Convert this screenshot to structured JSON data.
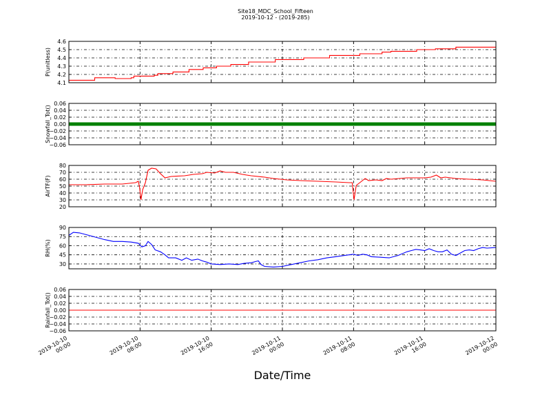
{
  "chart_data": {
    "type": "line",
    "title": "Site18_MDC_School_Fifteen",
    "subtitle": "2019-10-12 - (2019-285)",
    "xlabel": "Date/Time",
    "x_tick_labels": [
      [
        "2019-10-10",
        "00:00"
      ],
      [
        "2019-10-10",
        "08:00"
      ],
      [
        "2019-10-10",
        "16:00"
      ],
      [
        "2019-10-11",
        "00:00"
      ],
      [
        "2019-10-11",
        "08:00"
      ],
      [
        "2019-10-11",
        "16:00"
      ],
      [
        "2019-10-12",
        "00:00"
      ]
    ],
    "x_tick_hours": [
      0,
      8,
      16,
      24,
      32,
      40,
      48
    ],
    "xlim_hours": [
      0,
      48
    ],
    "grid": true,
    "panels": [
      {
        "ylabel": "P(unitless)",
        "ylim": [
          4.1,
          4.6
        ],
        "yticks": [
          "4.1",
          "4.2",
          "4.3",
          "4.4",
          "4.5",
          "4.6"
        ],
        "ytick_values": [
          4.1,
          4.2,
          4.3,
          4.4,
          4.5,
          4.6
        ],
        "series": [
          {
            "color": "#ff0000",
            "step": true,
            "points": [
              [
                0,
                4.13
              ],
              [
                2.7,
                4.13
              ],
              [
                2.9,
                4.16
              ],
              [
                5.0,
                4.16
              ],
              [
                5.2,
                4.15
              ],
              [
                7.0,
                4.16
              ],
              [
                7.3,
                4.18
              ],
              [
                9.2,
                4.18
              ],
              [
                9.6,
                4.19
              ],
              [
                10.0,
                4.21
              ],
              [
                11.5,
                4.21
              ],
              [
                11.7,
                4.23
              ],
              [
                13.2,
                4.23
              ],
              [
                13.5,
                4.26
              ],
              [
                14.8,
                4.26
              ],
              [
                15.1,
                4.28
              ],
              [
                16.3,
                4.28
              ],
              [
                16.6,
                4.3
              ],
              [
                18.0,
                4.3
              ],
              [
                18.2,
                4.32
              ],
              [
                20.0,
                4.32
              ],
              [
                20.2,
                4.35
              ],
              [
                23.0,
                4.35
              ],
              [
                23.2,
                4.38
              ],
              [
                26.0,
                4.38
              ],
              [
                26.4,
                4.4
              ],
              [
                29.0,
                4.4
              ],
              [
                29.3,
                4.43
              ],
              [
                32.5,
                4.43
              ],
              [
                32.7,
                4.45
              ],
              [
                35.0,
                4.45
              ],
              [
                35.2,
                4.47
              ],
              [
                36.0,
                4.47
              ],
              [
                36.2,
                4.48
              ],
              [
                38.9,
                4.48
              ],
              [
                39.1,
                4.5
              ],
              [
                41.0,
                4.5
              ],
              [
                41.2,
                4.51
              ],
              [
                43.3,
                4.51
              ],
              [
                43.5,
                4.53
              ],
              [
                46.0,
                4.53
              ],
              [
                46.3,
                4.53
              ],
              [
                48.0,
                4.53
              ]
            ]
          }
        ]
      },
      {
        "ylabel": "Snowfall_Tot()",
        "ylim": [
          -0.06,
          0.06
        ],
        "yticks": [
          "−0.06",
          "−0.04",
          "−0.02",
          "0.00",
          "0.02",
          "0.04",
          "0.06"
        ],
        "ytick_values": [
          -0.06,
          -0.04,
          -0.02,
          0.0,
          0.02,
          0.04,
          0.06
        ],
        "series": [
          {
            "color": "#008000",
            "markers": true,
            "points": [
              [
                0,
                0.0
              ],
              [
                48,
                0.0
              ]
            ]
          }
        ]
      },
      {
        "ylabel": "AirTF(F)",
        "ylim": [
          20,
          80
        ],
        "yticks": [
          "20",
          "30",
          "40",
          "50",
          "60",
          "70",
          "80"
        ],
        "ytick_values": [
          20,
          30,
          40,
          50,
          60,
          70,
          80
        ],
        "series": [
          {
            "color": "#ff0000",
            "points": [
              [
                0,
                52
              ],
              [
                2,
                52
              ],
              [
                4,
                53
              ],
              [
                6,
                53
              ],
              [
                7.5,
                55
              ],
              [
                7.8,
                57
              ],
              [
                7.95,
                48
              ],
              [
                8.1,
                30
              ],
              [
                8.3,
                45
              ],
              [
                8.6,
                55
              ],
              [
                8.9,
                73
              ],
              [
                9.3,
                76
              ],
              [
                9.8,
                75
              ],
              [
                10.3,
                68
              ],
              [
                10.8,
                62
              ],
              [
                11.5,
                64
              ],
              [
                13,
                65
              ],
              [
                14,
                67
              ],
              [
                15,
                68
              ],
              [
                15.5,
                70
              ],
              [
                16.4,
                69
              ],
              [
                17,
                72
              ],
              [
                17.6,
                70
              ],
              [
                18.5,
                70
              ],
              [
                19.5,
                67
              ],
              [
                20.5,
                65
              ],
              [
                22,
                63
              ],
              [
                23,
                61
              ],
              [
                24.5,
                59
              ],
              [
                26,
                58
              ],
              [
                28,
                57
              ],
              [
                30,
                56
              ],
              [
                31.5,
                55
              ],
              [
                31.85,
                55
              ],
              [
                32.05,
                30
              ],
              [
                32.3,
                51
              ],
              [
                32.8,
                56
              ],
              [
                33.3,
                61
              ],
              [
                33.7,
                58
              ],
              [
                34.5,
                59
              ],
              [
                35.2,
                58
              ],
              [
                35.7,
                61
              ],
              [
                36.2,
                60
              ],
              [
                38,
                62
              ],
              [
                40,
                62
              ],
              [
                40.7,
                63
              ],
              [
                41.3,
                66
              ],
              [
                41.8,
                62
              ],
              [
                42.3,
                63
              ],
              [
                43.5,
                61
              ],
              [
                45,
                60
              ],
              [
                46.5,
                59
              ],
              [
                48,
                57
              ]
            ]
          }
        ]
      },
      {
        "ylabel": "RH(%)",
        "ylim": [
          22,
          90
        ],
        "yticks": [
          "30",
          "45",
          "60",
          "75",
          "90"
        ],
        "ytick_values": [
          30,
          45,
          60,
          75,
          90
        ],
        "series": [
          {
            "color": "#0000ff",
            "points": [
              [
                0,
                77
              ],
              [
                0.5,
                82
              ],
              [
                1.2,
                81
              ],
              [
                2,
                78
              ],
              [
                3,
                74
              ],
              [
                4,
                70
              ],
              [
                5,
                67
              ],
              [
                6,
                67
              ],
              [
                7,
                66
              ],
              [
                7.8,
                64
              ],
              [
                8.2,
                58
              ],
              [
                8.6,
                60
              ],
              [
                8.9,
                67
              ],
              [
                9.3,
                62
              ],
              [
                9.7,
                53
              ],
              [
                10.3,
                50
              ],
              [
                10.8,
                45
              ],
              [
                11.2,
                40
              ],
              [
                12.0,
                40
              ],
              [
                12.7,
                36
              ],
              [
                13.2,
                40
              ],
              [
                13.8,
                36
              ],
              [
                14.5,
                38
              ],
              [
                15.0,
                35
              ],
              [
                15.5,
                33
              ],
              [
                16,
                30
              ],
              [
                17,
                29
              ],
              [
                18,
                30
              ],
              [
                19,
                29
              ],
              [
                19.7,
                31
              ],
              [
                20.5,
                32
              ],
              [
                21,
                34
              ],
              [
                21.3,
                35
              ],
              [
                21.6,
                29
              ],
              [
                22,
                26
              ],
              [
                23,
                25
              ],
              [
                24,
                26
              ],
              [
                25,
                29
              ],
              [
                26,
                32
              ],
              [
                27,
                35
              ],
              [
                28,
                37
              ],
              [
                29,
                40
              ],
              [
                30,
                42
              ],
              [
                31,
                44
              ],
              [
                32,
                46
              ],
              [
                32.5,
                44
              ],
              [
                33,
                46
              ],
              [
                33.5,
                45
              ],
              [
                34,
                42
              ],
              [
                35,
                41
              ],
              [
                36,
                40
              ],
              [
                37,
                44
              ],
              [
                38,
                50
              ],
              [
                38.5,
                52
              ],
              [
                39,
                54
              ],
              [
                39.5,
                53
              ],
              [
                40,
                52
              ],
              [
                40.5,
                55
              ],
              [
                41,
                52
              ],
              [
                41.5,
                50
              ],
              [
                42,
                50
              ],
              [
                42.5,
                53
              ],
              [
                43,
                46
              ],
              [
                43.5,
                44
              ],
              [
                44,
                48
              ],
              [
                44.5,
                52
              ],
              [
                45,
                53
              ],
              [
                45.5,
                52
              ],
              [
                46,
                55
              ],
              [
                46.5,
                57
              ],
              [
                47,
                56
              ],
              [
                48,
                57
              ]
            ]
          }
        ]
      },
      {
        "ylabel": "Rainfall_Tot()",
        "ylim": [
          -0.06,
          0.06
        ],
        "yticks": [
          "−0.06",
          "−0.04",
          "−0.02",
          "0.00",
          "0.02",
          "0.04",
          "0.06"
        ],
        "ytick_values": [
          -0.06,
          -0.04,
          -0.02,
          0.0,
          0.02,
          0.04,
          0.06
        ],
        "series": [
          {
            "color": "#ff0000",
            "points": [
              [
                0,
                0.0
              ],
              [
                48,
                0.0
              ]
            ]
          }
        ]
      }
    ]
  }
}
